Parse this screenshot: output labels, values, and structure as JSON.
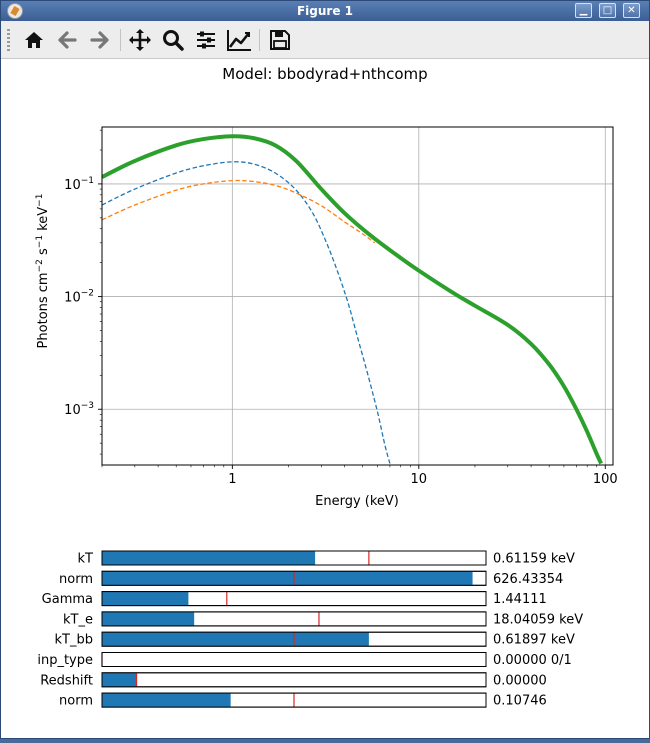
{
  "window": {
    "title": "Figure 1",
    "controls": [
      "minimize-icon",
      "maximize-icon",
      "close-icon"
    ]
  },
  "toolbar": {
    "buttons": [
      {
        "name": "home-button",
        "icon": "home-icon"
      },
      {
        "name": "back-button",
        "icon": "arrow-left-icon"
      },
      {
        "name": "forward-button",
        "icon": "arrow-right-icon"
      },
      {
        "name": "pan-button",
        "icon": "move-icon"
      },
      {
        "name": "zoom-button",
        "icon": "magnifier-icon"
      },
      {
        "name": "configure-subplots-button",
        "icon": "sliders-icon"
      },
      {
        "name": "edit-axis-button",
        "icon": "line-chart-icon"
      },
      {
        "name": "save-button",
        "icon": "floppy-disk-icon"
      }
    ]
  },
  "plot": {
    "title": "Model: bbodyrad+nthcomp",
    "ylabel_main": "Photons cm",
    "ylabel_exp1": "−2",
    "ylabel_mid1": " s",
    "ylabel_exp2": "−1",
    "ylabel_mid2": " keV",
    "ylabel_exp3": "−1",
    "xlabel": "Energy (keV)",
    "x_ticks": [
      "1",
      "10",
      "100"
    ],
    "y_ticks": [
      {
        "base": "10",
        "exp": "−1"
      },
      {
        "base": "10",
        "exp": "−2"
      },
      {
        "base": "10",
        "exp": "−3"
      }
    ]
  },
  "chart_data": {
    "type": "line",
    "title": "Model: bbodyrad+nthcomp",
    "xlabel": "Energy (keV)",
    "ylabel": "Photons cm^-2 s^-1 keV^-1",
    "xscale": "log",
    "yscale": "log",
    "xlim": [
      0.2,
      110
    ],
    "ylim": [
      0.00032,
      0.32
    ],
    "grid": true,
    "series": [
      {
        "color": "#2ca02c",
        "style": "solid",
        "points": [
          [
            0.2,
            0.115
          ],
          [
            0.3,
            0.16
          ],
          [
            0.5,
            0.22
          ],
          [
            0.7,
            0.25
          ],
          [
            1,
            0.265
          ],
          [
            1.3,
            0.255
          ],
          [
            1.7,
            0.22
          ],
          [
            2.2,
            0.16
          ],
          [
            3,
            0.09
          ],
          [
            4,
            0.055
          ],
          [
            5.5,
            0.035
          ],
          [
            8,
            0.022
          ],
          [
            10,
            0.017
          ],
          [
            15,
            0.011
          ],
          [
            20,
            0.0083
          ],
          [
            30,
            0.0056
          ],
          [
            40,
            0.0038
          ],
          [
            50,
            0.0025
          ],
          [
            60,
            0.0016
          ],
          [
            70,
            0.001
          ],
          [
            80,
            0.00063
          ],
          [
            90,
            0.0004
          ],
          [
            95,
            0.00033
          ]
        ]
      },
      {
        "color": "#1f77b4",
        "style": "dashed",
        "points": [
          [
            0.2,
            0.065
          ],
          [
            0.3,
            0.09
          ],
          [
            0.5,
            0.125
          ],
          [
            0.7,
            0.145
          ],
          [
            1,
            0.157
          ],
          [
            1.3,
            0.15
          ],
          [
            1.7,
            0.125
          ],
          [
            2.2,
            0.088
          ],
          [
            2.7,
            0.055
          ],
          [
            3.2,
            0.03
          ],
          [
            3.7,
            0.016
          ],
          [
            4.2,
            0.0085
          ],
          [
            4.7,
            0.0043
          ],
          [
            5.3,
            0.0021
          ],
          [
            6,
            0.00095
          ],
          [
            6.6,
            0.00047
          ],
          [
            7,
            0.00033
          ]
        ]
      },
      {
        "color": "#ff7f0e",
        "style": "dashed",
        "points": [
          [
            0.2,
            0.048
          ],
          [
            0.3,
            0.065
          ],
          [
            0.5,
            0.088
          ],
          [
            0.7,
            0.1
          ],
          [
            1,
            0.107
          ],
          [
            1.3,
            0.105
          ],
          [
            1.7,
            0.097
          ],
          [
            2.2,
            0.083
          ],
          [
            3,
            0.064
          ],
          [
            4,
            0.046
          ],
          [
            5,
            0.036
          ],
          [
            5.8,
            0.03
          ]
        ]
      }
    ]
  },
  "sliders": [
    {
      "label": "kT",
      "value_text": "0.61159 keV",
      "fill": 0.555,
      "marker": 0.695
    },
    {
      "label": "norm",
      "value_text": "626.43354",
      "fill": 0.965,
      "marker": 0.5
    },
    {
      "label": "Gamma",
      "value_text": "1.44111",
      "fill": 0.225,
      "marker": 0.325
    },
    {
      "label": "kT_e",
      "value_text": "18.04059 keV",
      "fill": 0.24,
      "marker": 0.565
    },
    {
      "label": "kT_bb",
      "value_text": "0.61897 keV",
      "fill": 0.695,
      "marker": 0.5
    },
    {
      "label": "inp_type",
      "value_text": "0.00000 0/1",
      "fill": 0.0,
      "marker": 0.0
    },
    {
      "label": "Redshift",
      "value_text": "0.00000",
      "fill": 0.09,
      "marker": 0.09
    },
    {
      "label": "norm",
      "value_text": "0.10746",
      "fill": 0.335,
      "marker": 0.5
    }
  ]
}
